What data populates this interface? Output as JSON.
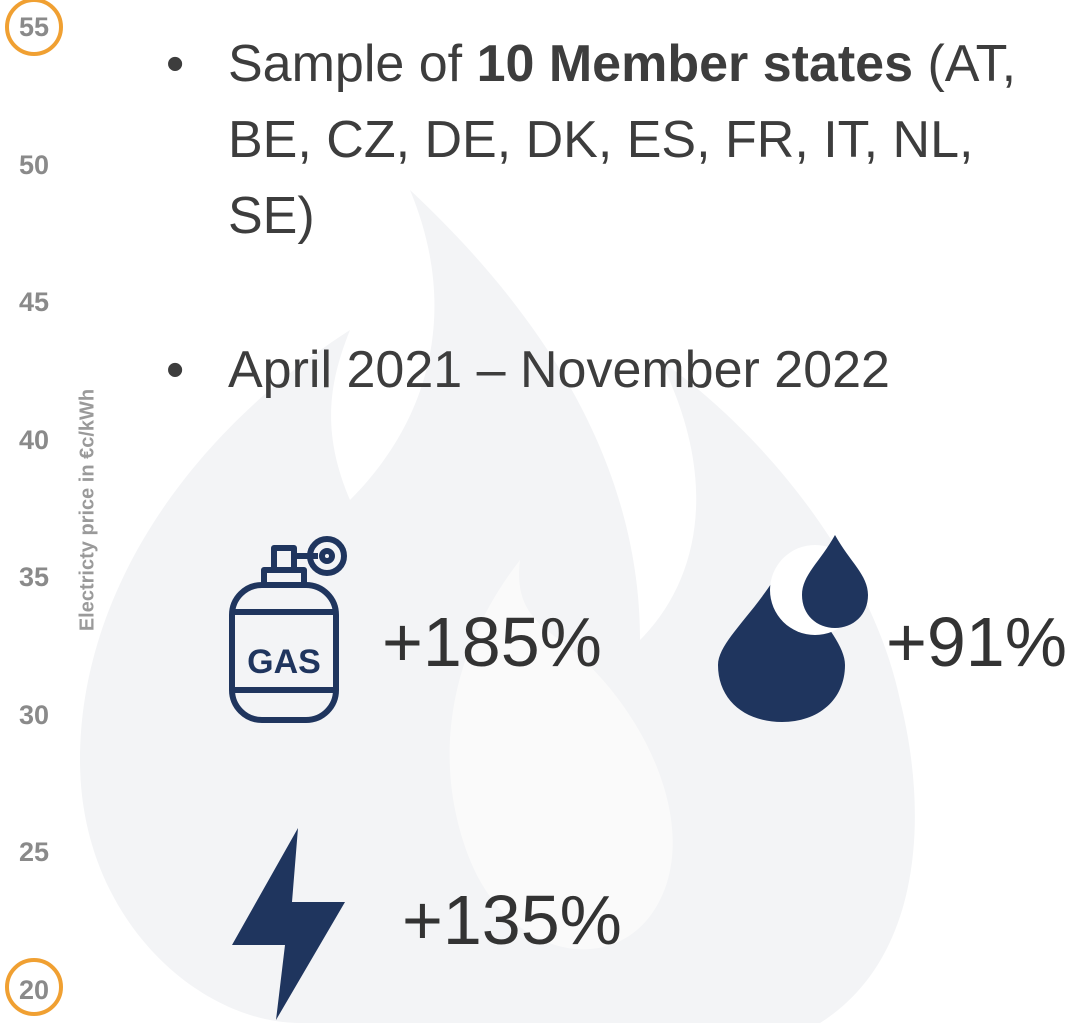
{
  "axis_label": "Electricty price in €c/kWh",
  "axis_ticks": [
    55,
    50,
    45,
    40,
    35,
    30,
    25,
    20
  ],
  "bullets": [
    {
      "parts": [
        {
          "text": "Sample of "
        },
        {
          "text": "10 Member states",
          "bold": true
        },
        {
          "text": " (AT, BE, CZ, DE, DK, ES, FR, IT, NL, SE)"
        }
      ]
    },
    {
      "parts": [
        {
          "text": "April 2021 – November 2022"
        }
      ]
    }
  ],
  "stats": {
    "gas": "+185%",
    "oil": "+91%",
    "electricity": "+135%"
  }
}
